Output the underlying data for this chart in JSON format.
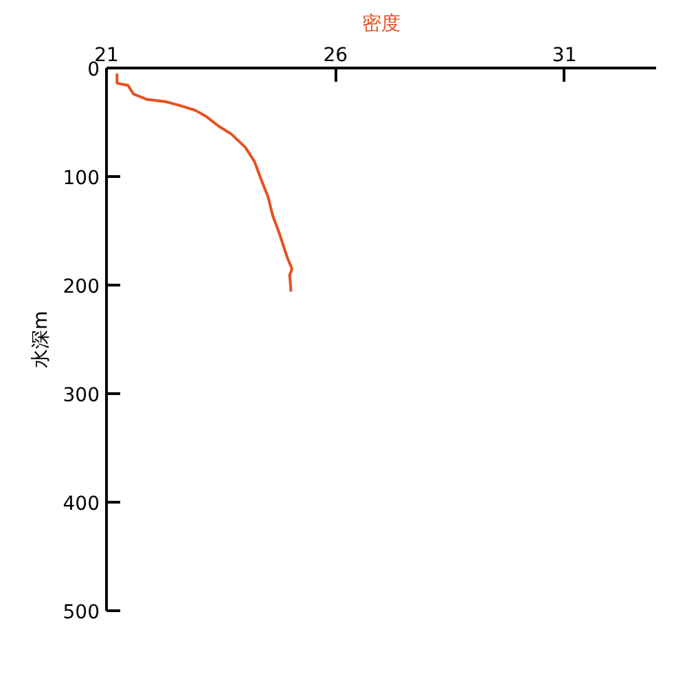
{
  "chart_data": {
    "type": "line",
    "xlabel": "密度",
    "ylabel": "水深m",
    "x": [
      21.23,
      21.23,
      21.47,
      21.59,
      21.89,
      22.29,
      22.64,
      22.94,
      23.19,
      23.43,
      23.73,
      24.03,
      24.23,
      24.38,
      24.53,
      24.63,
      24.78,
      24.88,
      24.96,
      25.05,
      25.0,
      25.03
    ],
    "series": [
      {
        "color": "#e8501e",
        "values": [
          5,
          14,
          16,
          24,
          29,
          31,
          35,
          39,
          45,
          53,
          61,
          73,
          86,
          103,
          119,
          136,
          153,
          166,
          176,
          185,
          191,
          206
        ]
      }
    ],
    "xlim": [
      21,
      33
    ],
    "xticks": [
      21,
      26,
      31
    ],
    "ylim": [
      500,
      0
    ],
    "yticks": [
      0,
      100,
      200,
      300,
      400,
      500
    ],
    "grid": false,
    "marker": "none",
    "line_style": "solid"
  }
}
